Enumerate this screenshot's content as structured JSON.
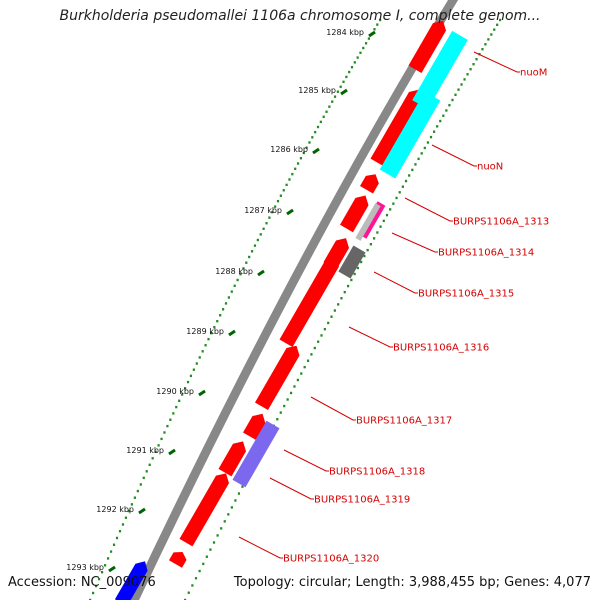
{
  "header": {
    "title": "Burkholderia pseudomallei 1106a chromosome I, complete genom..."
  },
  "footer": {
    "accession": "Accession: NC_009076",
    "summary": "Topology: circular; Length: 3,988,455 bp; Genes: 4,077"
  },
  "colors": {
    "backbone_outer": "#888888",
    "backbone_inner": "#ffffff",
    "gene_forward": "#ff0000",
    "gene_cyan": "#00ffff",
    "gene_magenta": "#ff1493",
    "gene_grey": "#666666",
    "gene_violet": "#7b68ee",
    "gene_blue": "#0000ff",
    "ticks_major": "#006400",
    "ticks_minor": "#228b22",
    "labels": "#d40000"
  },
  "scale": {
    "ticks": [
      "1284 kbp",
      "1285 kbp",
      "1286 kbp",
      "1287 kbp",
      "1288 kbp",
      "1289 kbp",
      "1290 kbp",
      "1291 kbp",
      "1292 kbp",
      "1293 kbp"
    ]
  },
  "genes": [
    {
      "label": "nuoM"
    },
    {
      "label": "nuoN"
    },
    {
      "label": "BURPS1106A_1313"
    },
    {
      "label": "BURPS1106A_1314"
    },
    {
      "label": "BURPS1106A_1315"
    },
    {
      "label": "BURPS1106A_1316"
    },
    {
      "label": "BURPS1106A_1317"
    },
    {
      "label": "BURPS1106A_1318"
    },
    {
      "label": "BURPS1106A_1319"
    },
    {
      "label": "BURPS1106A_1320"
    }
  ]
}
